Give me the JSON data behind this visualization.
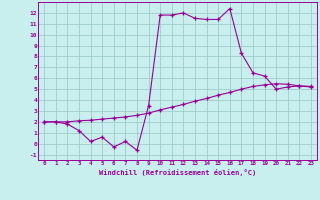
{
  "xlabel": "Windchill (Refroidissement éolien,°C)",
  "xlim": [
    -0.5,
    23.5
  ],
  "ylim": [
    -1.5,
    13.0
  ],
  "yticks": [
    -1,
    0,
    1,
    2,
    3,
    4,
    5,
    6,
    7,
    8,
    9,
    10,
    11,
    12
  ],
  "xticks": [
    0,
    1,
    2,
    3,
    4,
    5,
    6,
    7,
    8,
    9,
    10,
    11,
    12,
    13,
    14,
    15,
    16,
    17,
    18,
    19,
    20,
    21,
    22,
    23
  ],
  "bg_color": "#c8eeed",
  "grid_color": "#a0cccc",
  "line_color": "#990099",
  "curve1_x": [
    0,
    1,
    2,
    3,
    4,
    5,
    6,
    7,
    8,
    9,
    10,
    11,
    12,
    13,
    14,
    15,
    16,
    17,
    18,
    19,
    20,
    21,
    22,
    23
  ],
  "curve1_y": [
    2.0,
    2.0,
    1.8,
    1.2,
    0.2,
    0.6,
    -0.3,
    0.2,
    -0.6,
    3.5,
    11.8,
    11.8,
    12.0,
    11.5,
    11.4,
    11.4,
    12.4,
    8.3,
    6.5,
    6.2,
    5.0,
    5.2,
    5.3,
    5.2
  ],
  "curve2_x": [
    0,
    1,
    2,
    3,
    4,
    5,
    6,
    7,
    8,
    9,
    10,
    11,
    12,
    13,
    14,
    15,
    16,
    17,
    18,
    19,
    20,
    21,
    22,
    23
  ],
  "curve2_y": [
    2.0,
    2.0,
    2.0,
    2.1,
    2.15,
    2.25,
    2.35,
    2.45,
    2.6,
    2.8,
    3.1,
    3.35,
    3.6,
    3.9,
    4.15,
    4.45,
    4.7,
    5.0,
    5.25,
    5.4,
    5.5,
    5.45,
    5.3,
    5.25
  ]
}
